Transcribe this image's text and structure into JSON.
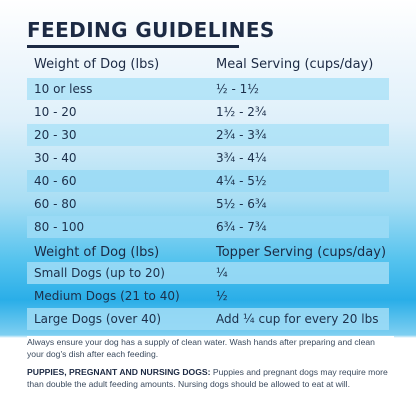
{
  "title": "FEEDING GUIDELINES",
  "meal_table": {
    "headers": [
      "Weight of Dog (lbs)",
      "Meal Serving (cups/day)"
    ],
    "rows": [
      [
        "10 or less",
        "½ - 1½"
      ],
      [
        "10 - 20",
        "1½ - 2¾"
      ],
      [
        "20 - 30",
        "2¾ - 3¾"
      ],
      [
        "30 - 40",
        "3¾ - 4¼"
      ],
      [
        "40 - 60",
        "4¼ - 5½"
      ],
      [
        "60 - 80",
        "5½ - 6¾"
      ],
      [
        "80 - 100",
        "6¾ - 7¾"
      ]
    ]
  },
  "topper_table": {
    "headers": [
      "Weight of Dog (lbs)",
      "Topper Serving (cups/day)"
    ],
    "rows": [
      [
        "Small Dogs (up to 20)",
        "¼"
      ],
      [
        "Medium Dogs (21 to 40)",
        "½"
      ],
      [
        "Large Dogs (over 40)",
        "Add ¼ cup for every 20 lbs"
      ]
    ]
  },
  "notes": {
    "water": "Always ensure your dog has a supply of clean water. Wash hands after preparing and clean your dog's dish after each feeding.",
    "puppies_label": "PUPPIES, PREGNANT AND NURSING DOGS:",
    "puppies_text": " Puppies and pregnant dogs may require more than double the adult feeding amounts. Nursing dogs should be allowed to eat at will."
  },
  "colors": {
    "heading": "#1c2a44",
    "row_shade": "#ade2f7",
    "gradient_blue": "#2aaee8"
  }
}
